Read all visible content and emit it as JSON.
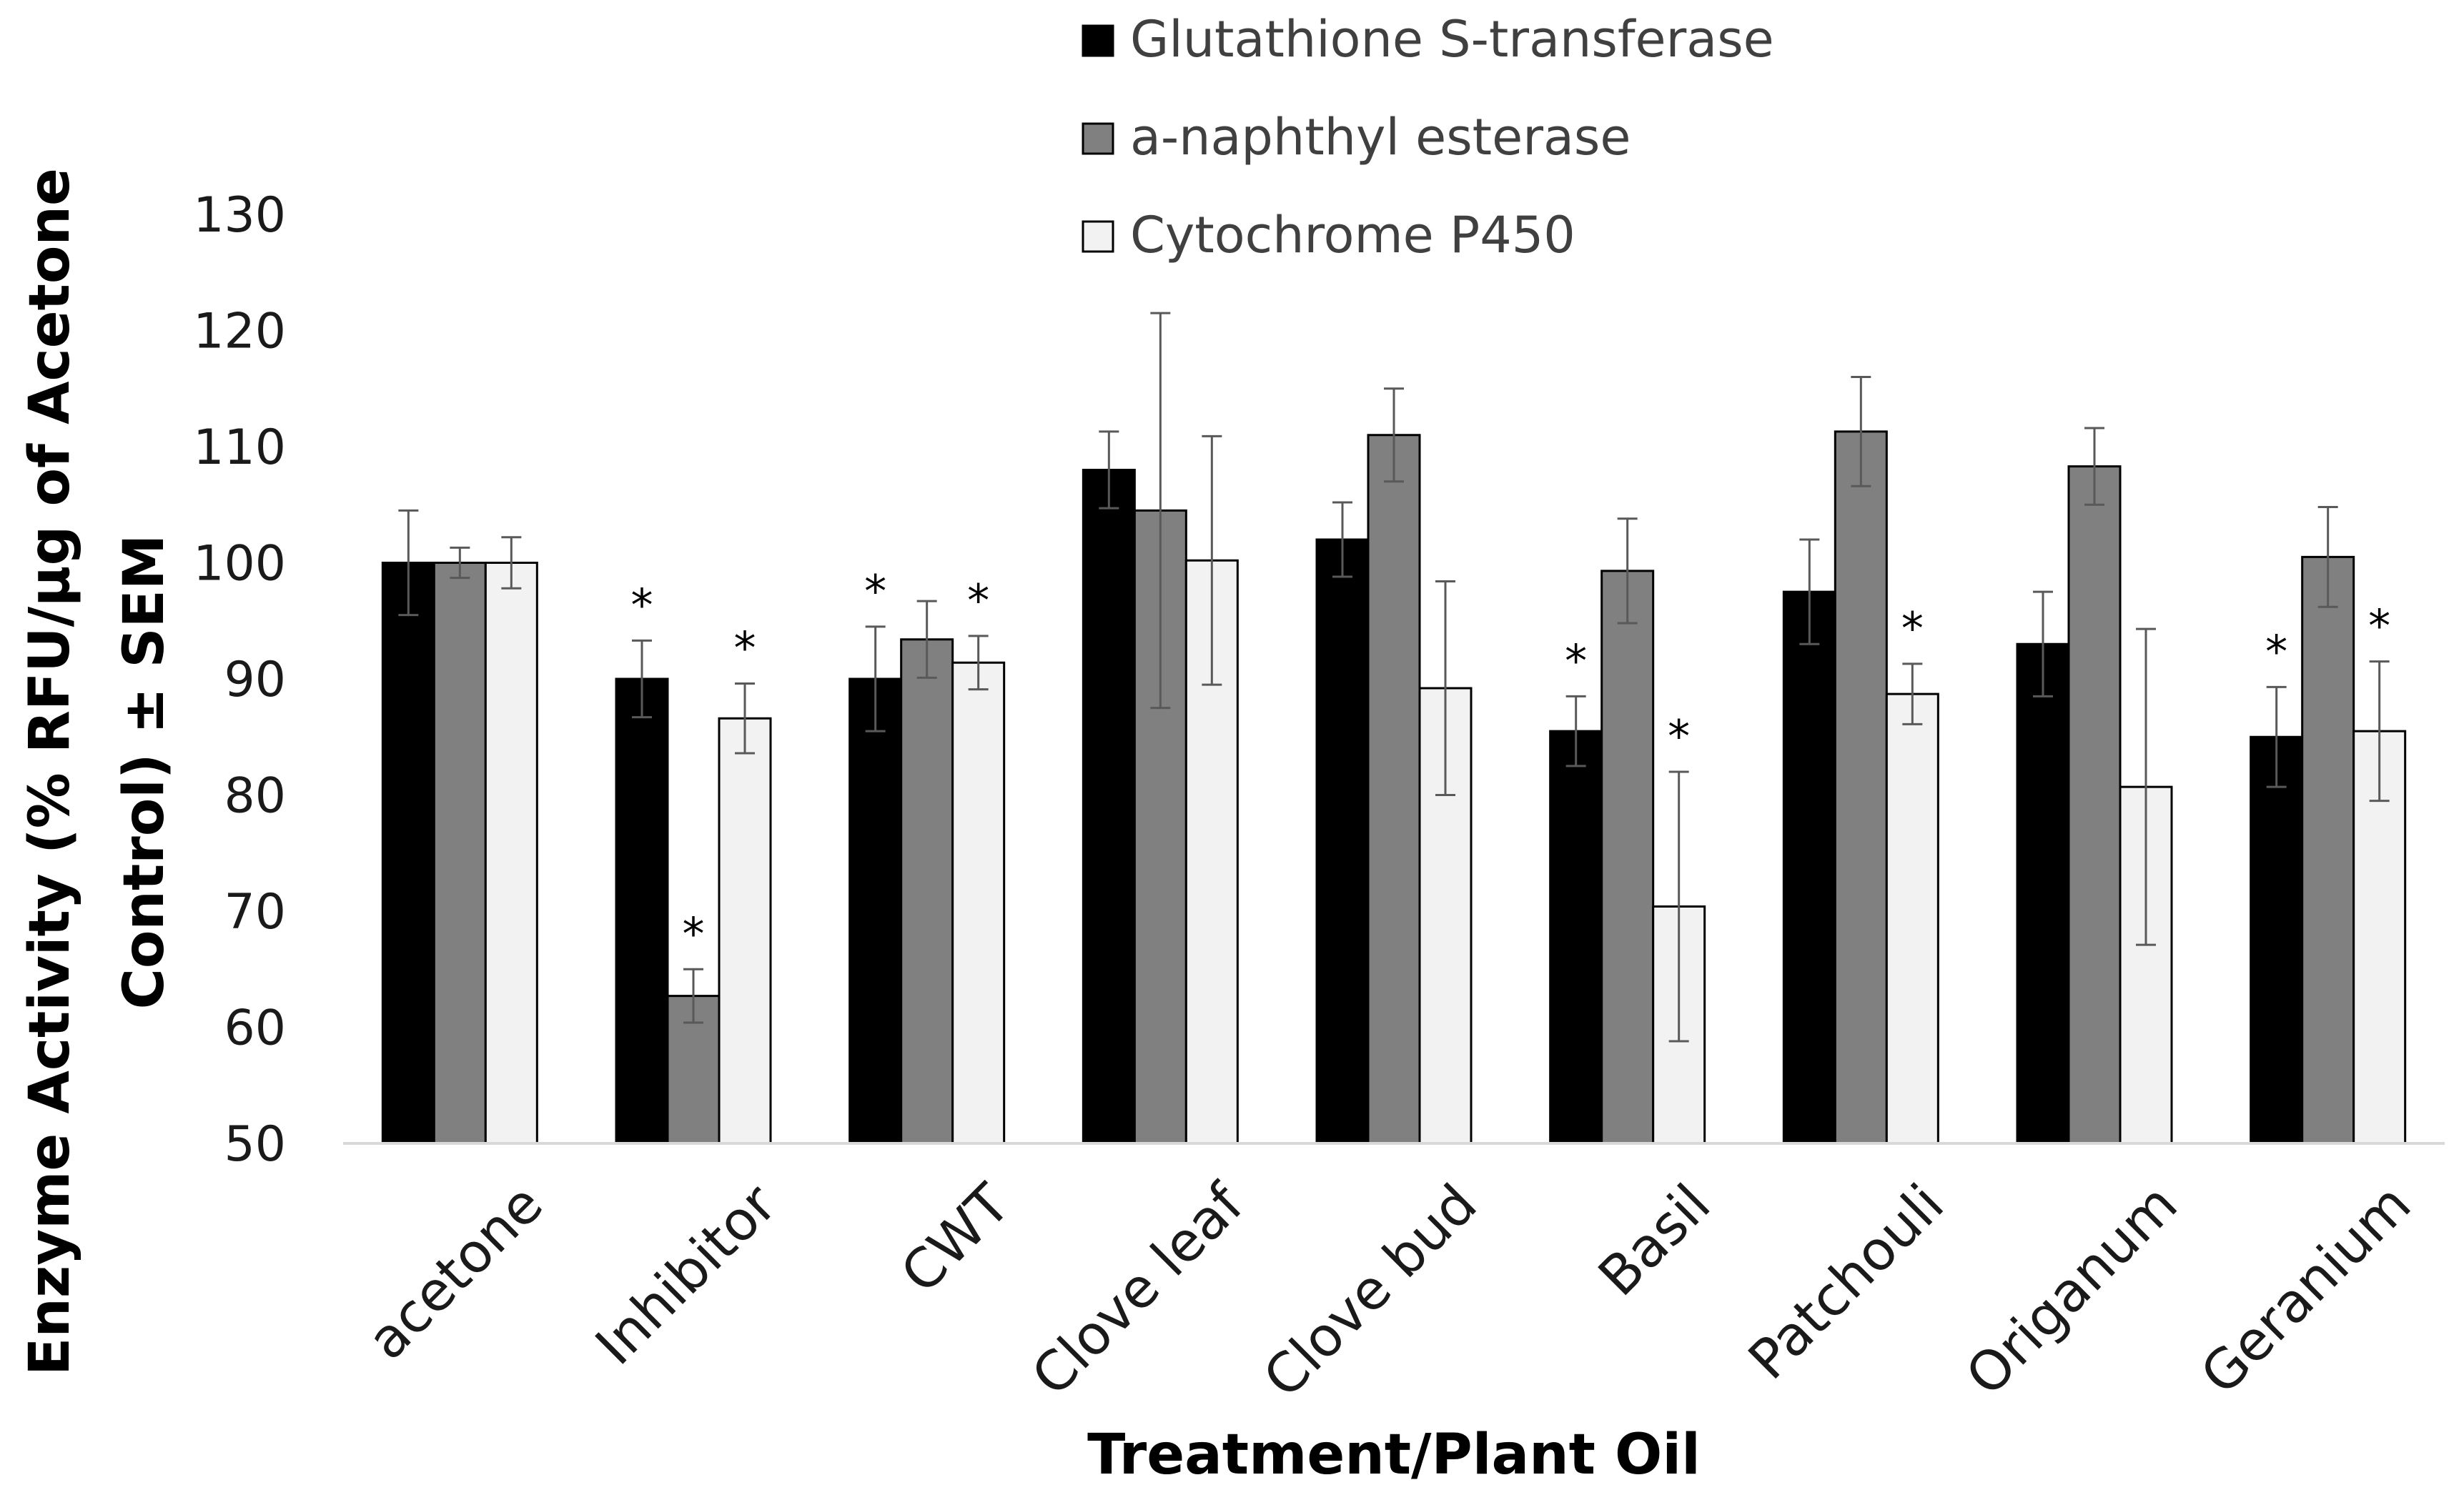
{
  "chart_data": {
    "type": "bar",
    "title": "",
    "xlabel": "Treatment/Plant Oil",
    "ylabel_line1": "Enzyme Activity (% RFU/µg of Acetone",
    "ylabel_line2": "Control) ± SEM",
    "ylim": [
      50,
      130
    ],
    "yticks": [
      50,
      60,
      70,
      80,
      90,
      100,
      110,
      120,
      130
    ],
    "ytick_labels": [
      "50",
      "60",
      "70",
      "80",
      "90",
      "100",
      "110",
      "120",
      "130"
    ],
    "grid": false,
    "legend_position": "top-center",
    "categories": [
      "acetone",
      "Inhibitor",
      "CWT",
      "Clove leaf",
      "Clove bud",
      "Basil",
      "Patchouli",
      "Origanum",
      "Geranium"
    ],
    "series": [
      {
        "name": "Glutathione S-transferase",
        "color": "#000000",
        "values": [
          100,
          90,
          90,
          108,
          102,
          85.5,
          97.5,
          93,
          85
        ],
        "errors": [
          4.5,
          3.3,
          4.5,
          3.3,
          3.2,
          3.0,
          4.5,
          4.5,
          4.3
        ],
        "significant": [
          false,
          true,
          true,
          false,
          false,
          true,
          false,
          false,
          true
        ]
      },
      {
        "name": "a-naphthyl esterase",
        "color": "#808080",
        "values": [
          100,
          62.7,
          93.4,
          104.5,
          111,
          99.3,
          111.3,
          108.3,
          100.5
        ],
        "errors": [
          1.3,
          2.3,
          3.3,
          17.0,
          4.0,
          4.5,
          4.7,
          3.3,
          4.3
        ],
        "significant": [
          false,
          true,
          false,
          false,
          false,
          false,
          false,
          false,
          false
        ]
      },
      {
        "name": "Cytochrome P450",
        "color": "#f2f2f2",
        "values": [
          100,
          86.6,
          91.4,
          100.2,
          89.2,
          70.4,
          88.7,
          80.7,
          85.5
        ],
        "errors": [
          2.2,
          3.0,
          2.3,
          10.7,
          9.2,
          11.6,
          2.6,
          13.6,
          6.0
        ],
        "significant": [
          false,
          true,
          true,
          false,
          false,
          true,
          true,
          false,
          true
        ]
      }
    ],
    "significance_marker": "*"
  }
}
